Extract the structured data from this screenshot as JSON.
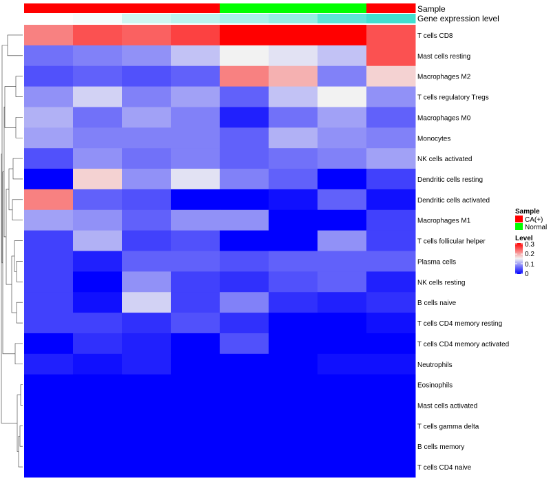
{
  "chart_data": {
    "type": "heatmap",
    "annotation_tracks": [
      {
        "name": "Sample",
        "values": [
          "CA(+)",
          "CA(+)",
          "CA(+)",
          "CA(+)",
          "Normal",
          "Normal",
          "Normal",
          "CA(+)"
        ]
      },
      {
        "name": "Gene expression level",
        "values": [
          0.0,
          0.05,
          0.25,
          0.35,
          0.45,
          0.55,
          0.85,
          1.0
        ]
      }
    ],
    "rows": [
      "T cells CD8",
      "Mast cells resting",
      "Macrophages M2",
      "T cells regulatory  Tregs",
      "Macrophages M0",
      "Monocytes",
      "NK cells activated",
      "Dendritic cells resting",
      "Dendritic cells activated",
      "Macrophages M1",
      "T cells follicular helper",
      "Plasma cells",
      "NK cells resting",
      "B cells naive",
      "T cells CD4 memory resting",
      "T cells CD4 memory activated",
      "Neutrophils",
      "Eosinophils",
      "Mast cells activated",
      "T cells gamma delta",
      "B cells memory",
      "T cells CD4 naive"
    ],
    "values": [
      [
        0.22,
        0.25,
        0.24,
        0.26,
        0.3,
        0.3,
        0.3,
        0.25
      ],
      [
        0.07,
        0.08,
        0.09,
        0.12,
        0.15,
        0.14,
        0.12,
        0.25
      ],
      [
        0.05,
        0.06,
        0.05,
        0.06,
        0.22,
        0.19,
        0.08,
        0.17
      ],
      [
        0.09,
        0.13,
        0.08,
        0.1,
        0.06,
        0.12,
        0.15,
        0.09
      ],
      [
        0.11,
        0.07,
        0.1,
        0.08,
        0.02,
        0.07,
        0.1,
        0.06
      ],
      [
        0.1,
        0.08,
        0.08,
        0.08,
        0.06,
        0.11,
        0.09,
        0.08
      ],
      [
        0.05,
        0.09,
        0.07,
        0.08,
        0.06,
        0.07,
        0.08,
        0.1
      ],
      [
        0.0,
        0.17,
        0.09,
        0.14,
        0.08,
        0.06,
        0.0,
        0.04
      ],
      [
        0.22,
        0.06,
        0.05,
        0.0,
        0.0,
        0.01,
        0.06,
        0.01
      ],
      [
        0.1,
        0.09,
        0.06,
        0.09,
        0.09,
        0.0,
        0.0,
        0.04
      ],
      [
        0.04,
        0.11,
        0.04,
        0.05,
        0.0,
        0.0,
        0.09,
        0.04
      ],
      [
        0.04,
        0.02,
        0.06,
        0.06,
        0.05,
        0.06,
        0.06,
        0.06
      ],
      [
        0.04,
        0.0,
        0.09,
        0.04,
        0.03,
        0.05,
        0.06,
        0.02
      ],
      [
        0.04,
        0.01,
        0.13,
        0.04,
        0.08,
        0.03,
        0.02,
        0.03
      ],
      [
        0.04,
        0.04,
        0.03,
        0.05,
        0.03,
        0.0,
        0.0,
        0.01
      ],
      [
        0.0,
        0.03,
        0.02,
        0.0,
        0.05,
        0.0,
        0.0,
        0.0
      ],
      [
        0.02,
        0.01,
        0.02,
        0.0,
        0.0,
        0.0,
        0.01,
        0.01
      ],
      [
        0,
        0,
        0,
        0,
        0,
        0,
        0,
        0
      ],
      [
        0,
        0,
        0,
        0,
        0,
        0,
        0,
        0
      ],
      [
        0,
        0,
        0,
        0,
        0,
        0,
        0,
        0
      ],
      [
        0,
        0,
        0,
        0,
        0,
        0,
        0,
        0
      ],
      [
        0,
        0,
        0,
        0,
        0,
        0,
        0,
        0
      ]
    ],
    "color_scale": {
      "low": "#0000ff",
      "mid": "#f2f2f2",
      "high": "#ff0000",
      "min": 0,
      "mid_value": 0.15,
      "max": 0.3
    },
    "sample_colors": {
      "CA(+)": "#ff0000",
      "Normal": "#00ff00"
    },
    "expression_colors": {
      "low": "#ffffff",
      "high": "#40e0d0"
    },
    "dendrogram": "rows",
    "legend_position": "right"
  },
  "legend": {
    "sample_title": "Sample",
    "sample_items": [
      {
        "label": "CA(+)",
        "color": "#ff0000"
      },
      {
        "label": "Normal",
        "color": "#00ff00"
      }
    ],
    "level_title": "Level",
    "level_ticks": [
      "0.3",
      "0.2",
      "0.1",
      "0"
    ]
  }
}
